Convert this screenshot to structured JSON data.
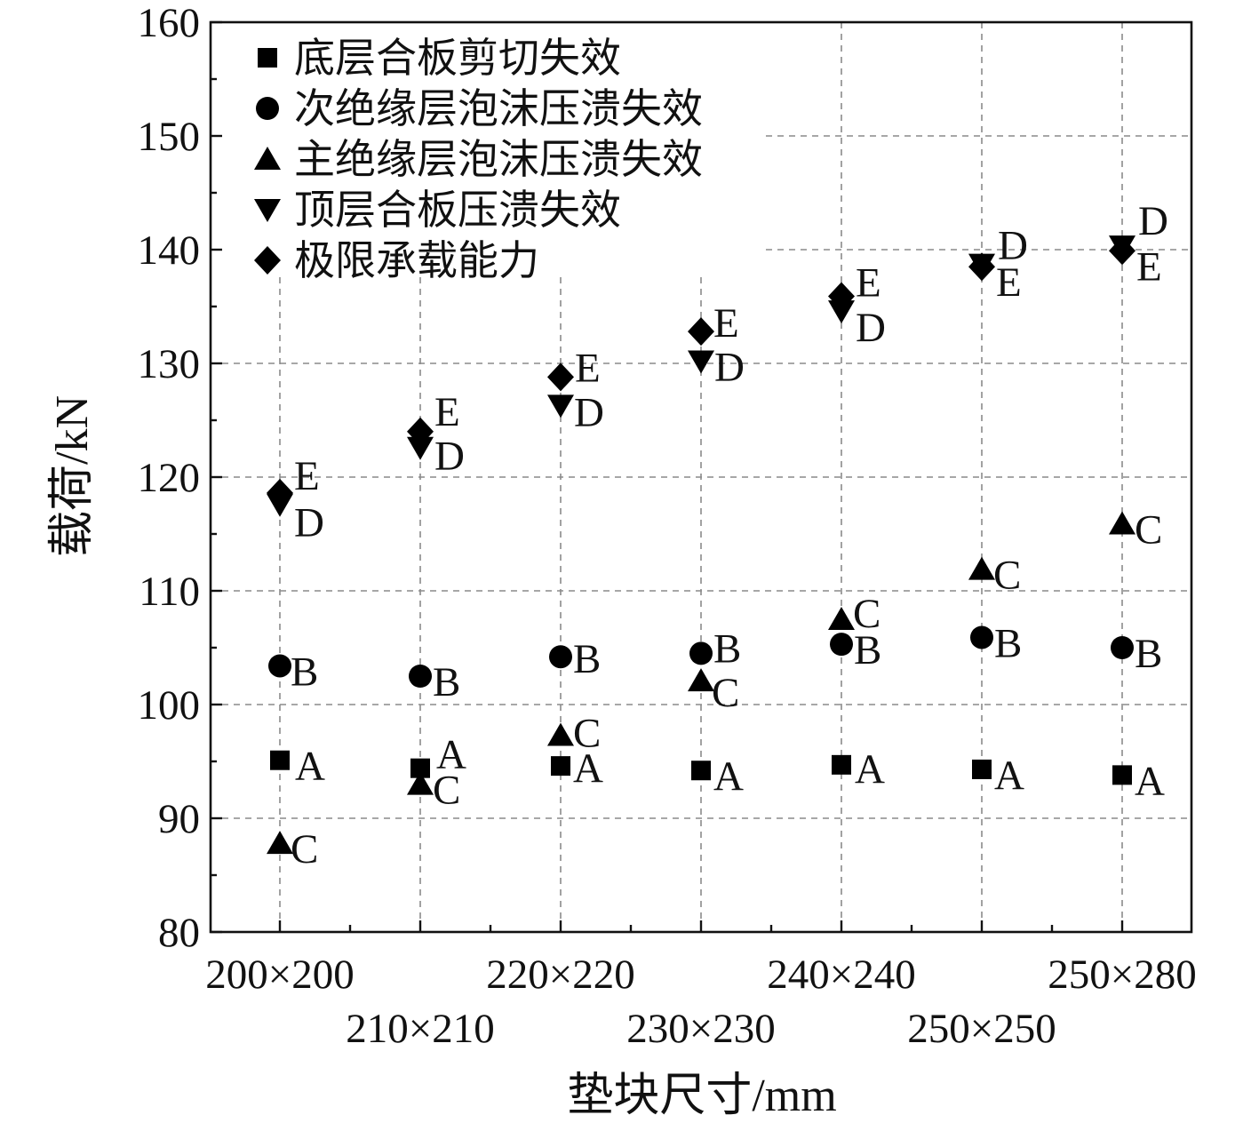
{
  "chart_data": {
    "type": "scatter",
    "xlabel": "垫块尺寸/mm",
    "ylabel": "载荷/kN",
    "categories": [
      "200×200",
      "210×210",
      "220×220",
      "230×230",
      "240×240",
      "250×250",
      "250×280"
    ],
    "ylim": [
      80,
      160
    ],
    "yticks": [
      80,
      90,
      100,
      110,
      120,
      130,
      140,
      150,
      160
    ],
    "grid": true,
    "legend_position": "top-left",
    "series": [
      {
        "name": "底层合板剪切失效",
        "marker": "square",
        "point_label": "A",
        "values": [
          95.1,
          94.4,
          94.6,
          94.2,
          94.7,
          94.3,
          93.8
        ]
      },
      {
        "name": "次绝缘层泡沫压溃失效",
        "marker": "circle",
        "point_label": "B",
        "values": [
          103.4,
          102.5,
          104.2,
          104.5,
          105.3,
          105.9,
          105.0
        ]
      },
      {
        "name": "主绝缘层泡沫压溃失效",
        "marker": "triangle-up",
        "point_label": "C",
        "values": [
          87.8,
          93.0,
          97.3,
          102.1,
          107.5,
          111.9,
          115.9
        ]
      },
      {
        "name": "顶层合板压溃失效",
        "marker": "triangle-down",
        "point_label": "D",
        "values": [
          117.6,
          122.6,
          126.3,
          130.2,
          134.6,
          138.7,
          140.3
        ]
      },
      {
        "name": "极限承载能力",
        "marker": "diamond",
        "point_label": "E",
        "values": [
          118.6,
          124.0,
          128.8,
          132.8,
          135.9,
          138.5,
          139.9
        ]
      }
    ]
  }
}
